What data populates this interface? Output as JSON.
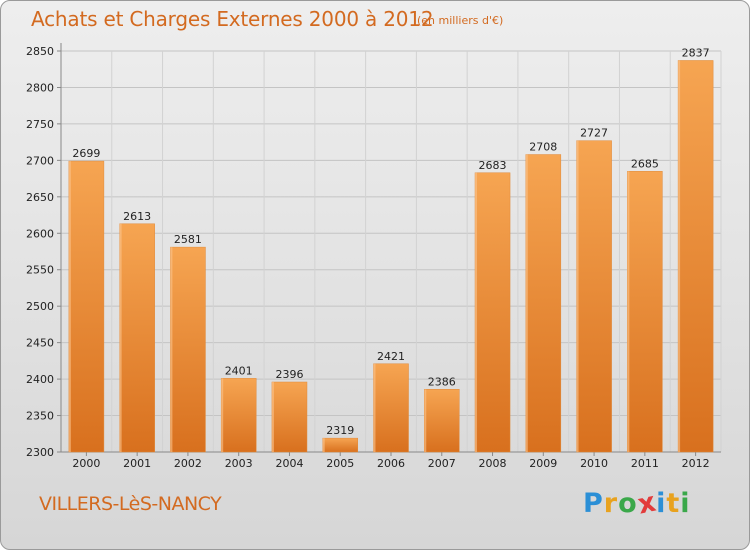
{
  "header": {
    "title": "Achats et Charges Externes 2000 à 2012",
    "subtitle": "(en milliers d'€)"
  },
  "footer": {
    "place": "VILLERS-LèS-NANCY",
    "logo": {
      "letters": [
        "P",
        "r",
        "o",
        "x",
        "i",
        "t",
        "i"
      ],
      "colors": [
        "#2b8fd6",
        "#e8a21e",
        "#3aa84a",
        "#e23b3b",
        "#2b8fd6",
        "#e8a21e",
        "#3aa84a"
      ]
    }
  },
  "colors": {
    "bar_top": "#f6a552",
    "bar_bottom": "#d8701e",
    "text_accent": "#d36a20"
  },
  "chart_data": {
    "type": "bar",
    "title": "Achats et Charges Externes 2000 à 2012",
    "subtitle": "(en milliers d'€)",
    "categories": [
      "2000",
      "2001",
      "2002",
      "2003",
      "2004",
      "2005",
      "2006",
      "2007",
      "2008",
      "2009",
      "2010",
      "2011",
      "2012"
    ],
    "values": [
      2699,
      2613,
      2581,
      2401,
      2396,
      2319,
      2421,
      2386,
      2683,
      2708,
      2727,
      2685,
      2837
    ],
    "ylim": [
      2300,
      2850
    ],
    "yticks": [
      2300,
      2350,
      2400,
      2450,
      2500,
      2550,
      2600,
      2650,
      2700,
      2750,
      2800,
      2850
    ],
    "grid": true
  }
}
